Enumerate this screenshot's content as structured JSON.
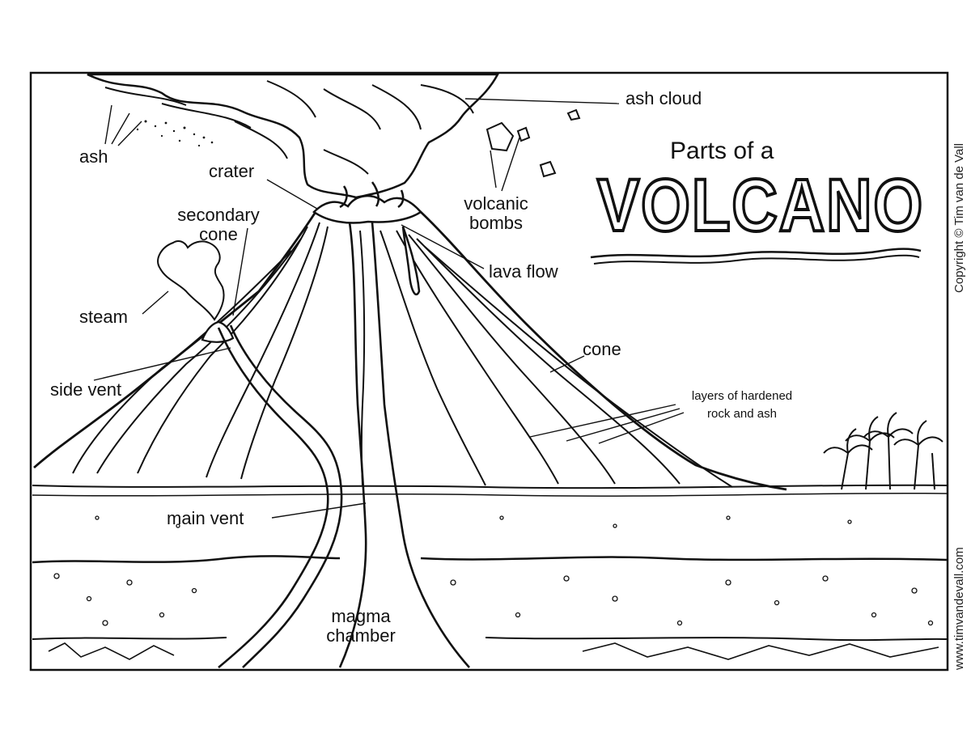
{
  "title": {
    "prefix": "Parts of a",
    "main": "VOLCANO"
  },
  "labels": {
    "ash_cloud": "ash cloud",
    "ash": "ash",
    "crater": "crater",
    "secondary_cone": [
      "secondary",
      "cone"
    ],
    "steam": "steam",
    "side_vent": "side vent",
    "volcanic_bombs": [
      "volcanic",
      "bombs"
    ],
    "lava_flow": "lava flow",
    "cone": "cone",
    "layers": [
      "layers of hardened",
      "rock and ash"
    ],
    "main_vent": "main vent",
    "magma_chamber": [
      "magma",
      "chamber"
    ]
  },
  "credits": {
    "copyright": "Copyright © Tim van de Vall",
    "website": "www.timvandevall.com"
  },
  "colors": {
    "ink": "#111111",
    "paper": "#ffffff"
  }
}
